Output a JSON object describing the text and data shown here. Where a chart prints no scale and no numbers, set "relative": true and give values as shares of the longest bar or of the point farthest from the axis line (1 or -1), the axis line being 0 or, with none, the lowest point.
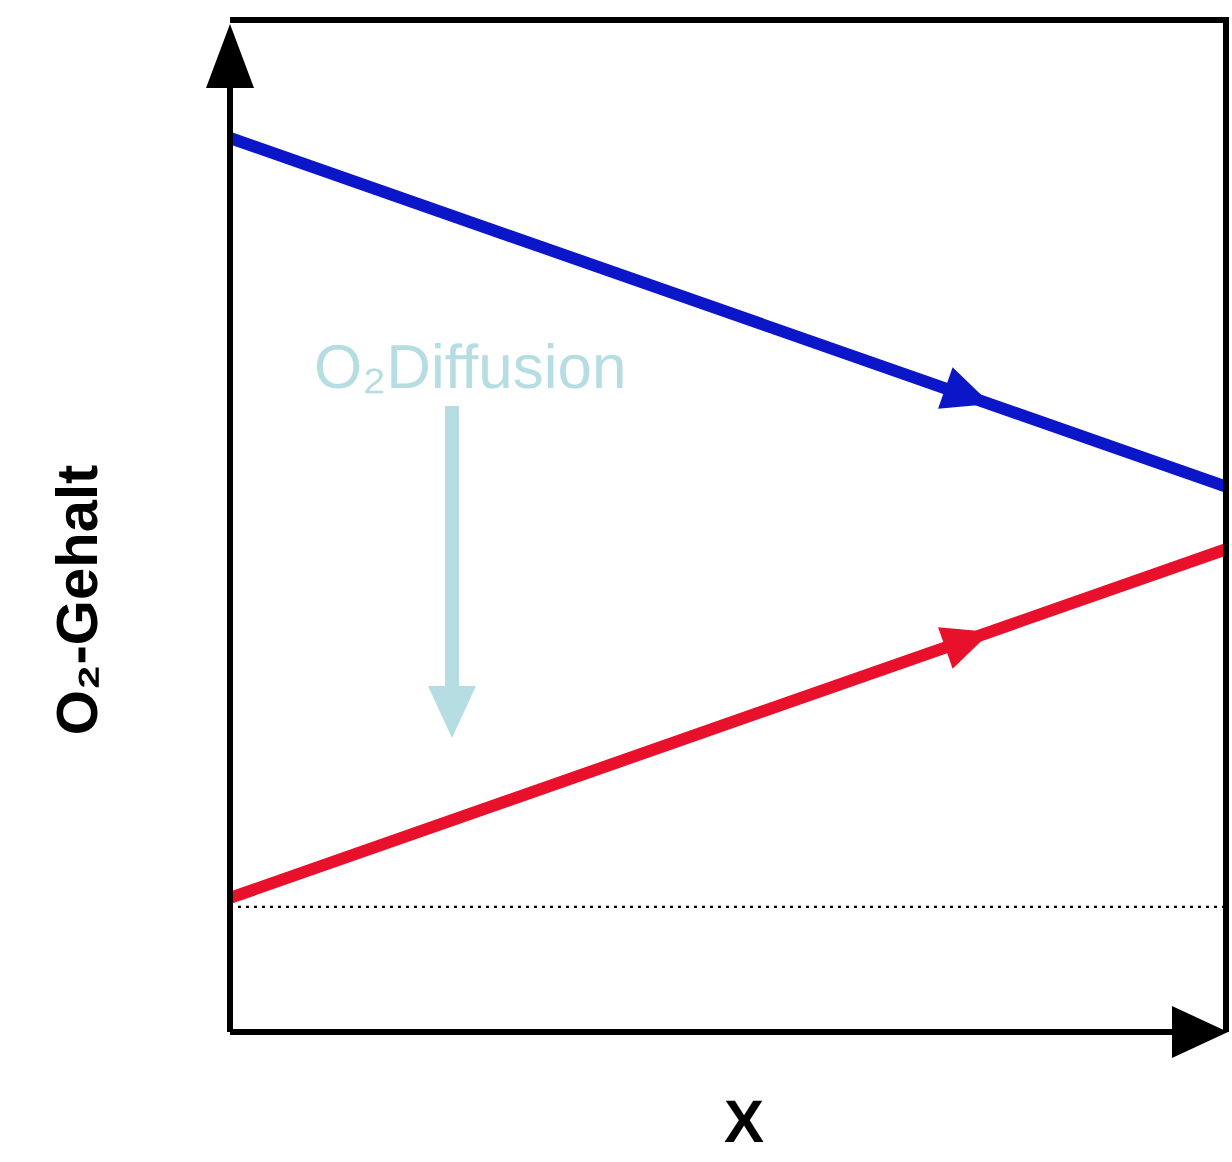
{
  "chart_data": {
    "type": "line",
    "relative": true,
    "xlabel": "X",
    "ylabel": "O₂-Gehalt",
    "categories": [
      null,
      null
    ],
    "series": [
      {
        "color": "#0b16c9",
        "values": [
          1,
          0.61
        ]
      },
      {
        "color": "#e8102a",
        "values": [
          0.15,
          0.54
        ]
      }
    ],
    "ref_lines": [
      {
        "axis": "y",
        "value": 0.14,
        "color": "#000000",
        "line_style": "dotted"
      }
    ],
    "annotations": [
      "O₂Diffusion"
    ],
    "legend": false,
    "marker": "none",
    "line_style": "solid"
  }
}
